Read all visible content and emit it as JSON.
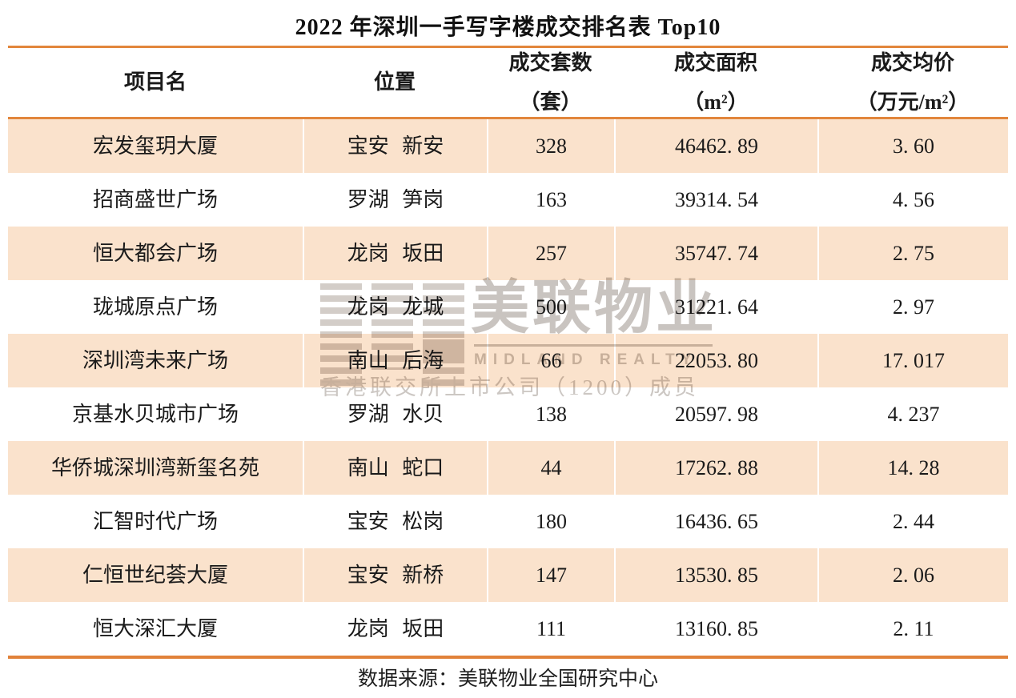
{
  "title": "2022 年深圳一手写字楼成交排名表 Top10",
  "colors": {
    "accent_orange_border": "#E2863C",
    "row_peach": "#FAE2CC",
    "text": "#1a1a1a",
    "watermark_gray": "#CBC6C1"
  },
  "table": {
    "headers": {
      "name": "项目名",
      "location": "位置",
      "units_line1": "成交套数",
      "units_line2": "（套）",
      "area_line1": "成交面积",
      "area_line2": "（m²）",
      "price_line1": "成交均价",
      "price_line2": "（万元/m²）"
    },
    "rows": [
      {
        "name": "宏发玺玥大厦",
        "location": "宝安 新安",
        "units": "328",
        "area": "46462. 89",
        "price": "3. 60"
      },
      {
        "name": "招商盛世广场",
        "location": "罗湖 笋岗",
        "units": "163",
        "area": "39314. 54",
        "price": "4. 56"
      },
      {
        "name": "恒大都会广场",
        "location": "龙岗 坂田",
        "units": "257",
        "area": "35747. 74",
        "price": "2. 75"
      },
      {
        "name": "珑城原点广场",
        "location": "龙岗 龙城",
        "units": "500",
        "area": "31221. 64",
        "price": "2. 97"
      },
      {
        "name": "深圳湾未来广场",
        "location": "南山 后海",
        "units": "66",
        "area": "22053. 80",
        "price": "17. 017"
      },
      {
        "name": "京基水贝城市广场",
        "location": "罗湖 水贝",
        "units": "138",
        "area": "20597. 98",
        "price": "4. 237"
      },
      {
        "name": "华侨城深圳湾新玺名苑",
        "location": "南山 蛇口",
        "units": "44",
        "area": "17262. 88",
        "price": "14. 28"
      },
      {
        "name": "汇智时代广场",
        "location": "宝安 松岗",
        "units": "180",
        "area": "16436. 65",
        "price": "2. 44"
      },
      {
        "name": "仁恒世纪荟大厦",
        "location": "宝安 新桥",
        "units": "147",
        "area": "13530. 85",
        "price": "2. 06"
      },
      {
        "name": "恒大深汇大厦",
        "location": "龙岗 坂田",
        "units": "111",
        "area": "13160. 85",
        "price": "2. 11"
      }
    ]
  },
  "watermark": {
    "brand_cn": "美联物业",
    "brand_en": "MIDLAND REALTY",
    "note": "香港联交所上市公司（1200）成员"
  },
  "footer": {
    "source": "数据来源：美联物业全国研究中心"
  },
  "chart_data": {
    "type": "table",
    "title": "2022 年深圳一手写字楼成交排名表 Top10",
    "columns": [
      "项目名",
      "位置",
      "成交套数（套）",
      "成交面积（m²）",
      "成交均价（万元/m²）"
    ],
    "rows": [
      [
        "宏发玺玥大厦",
        "宝安 新安",
        328,
        46462.89,
        3.6
      ],
      [
        "招商盛世广场",
        "罗湖 笋岗",
        163,
        39314.54,
        4.56
      ],
      [
        "恒大都会广场",
        "龙岗 坂田",
        257,
        35747.74,
        2.75
      ],
      [
        "珑城原点广场",
        "龙岗 龙城",
        500,
        31221.64,
        2.97
      ],
      [
        "深圳湾未来广场",
        "南山 后海",
        66,
        22053.8,
        17.017
      ],
      [
        "京基水贝城市广场",
        "罗湖 水贝",
        138,
        20597.98,
        4.237
      ],
      [
        "华侨城深圳湾新玺名苑",
        "南山 蛇口",
        44,
        17262.88,
        14.28
      ],
      [
        "汇智时代广场",
        "宝安 松岗",
        180,
        16436.65,
        2.44
      ],
      [
        "仁恒世纪荟大厦",
        "宝安 新桥",
        147,
        13530.85,
        2.06
      ],
      [
        "恒大深汇大厦",
        "龙岗 坂田",
        111,
        13160.85,
        2.11
      ]
    ],
    "source_note": "数据来源：美联物业全国研究中心"
  }
}
